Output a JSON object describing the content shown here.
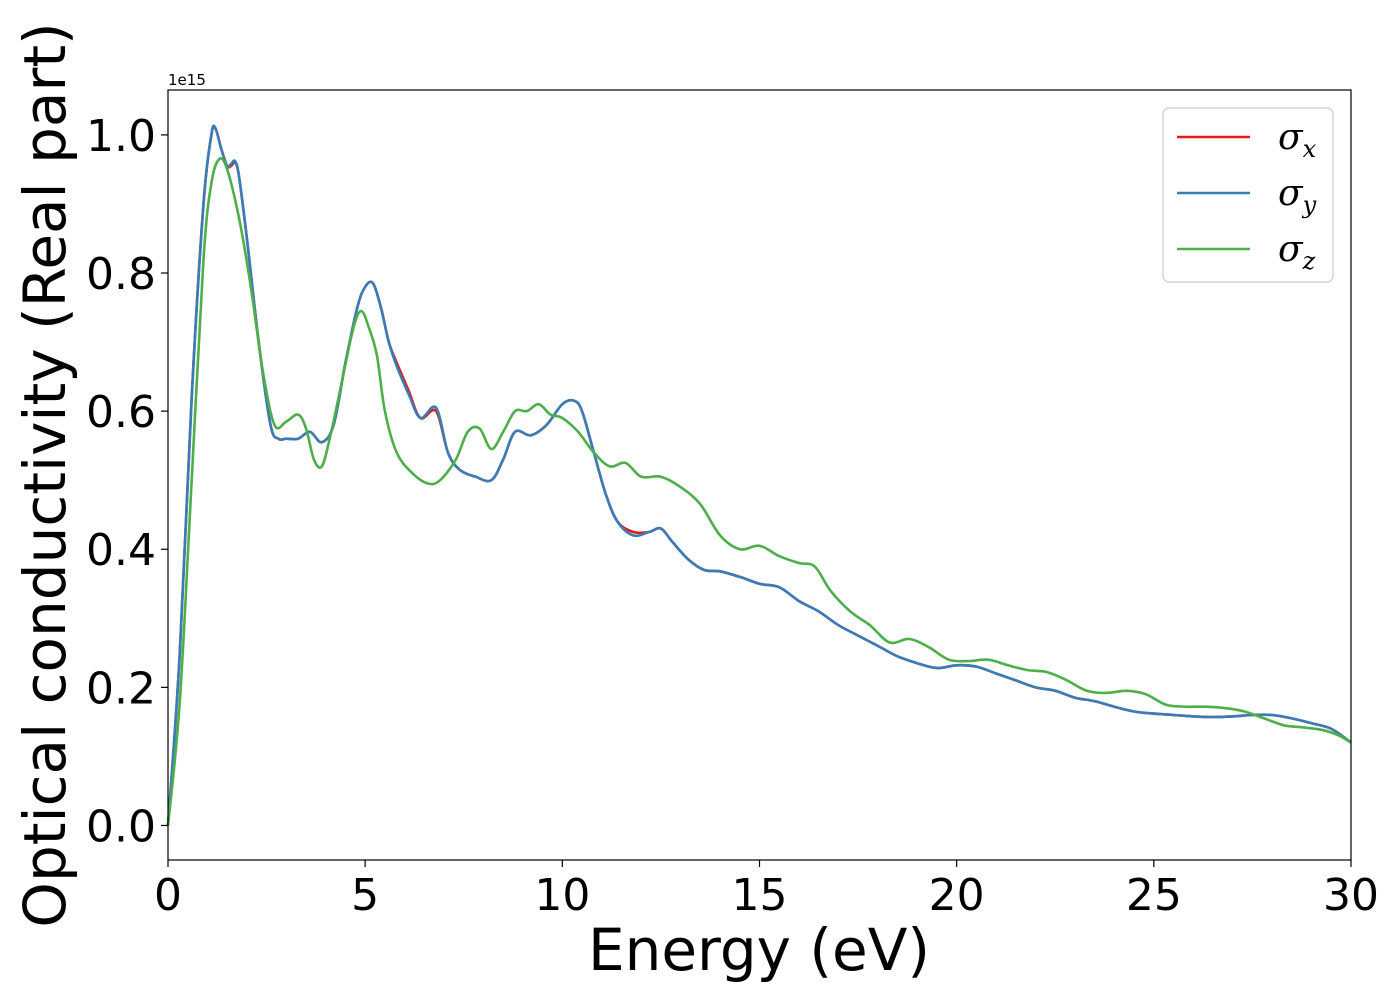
{
  "chart_data": {
    "type": "line",
    "xlabel": "Energy (eV)",
    "ylabel": "Optical conductivity (Real part)",
    "y_offset_text": "1e15",
    "xlim": [
      0,
      30
    ],
    "ylim": [
      -0.05,
      1.065
    ],
    "xticks": [
      0,
      5,
      10,
      15,
      20,
      25,
      30
    ],
    "yticks": [
      0.0,
      0.2,
      0.4,
      0.6,
      0.8,
      1.0
    ],
    "xtick_labels": [
      "0",
      "5",
      "10",
      "15",
      "20",
      "25",
      "30"
    ],
    "ytick_labels": [
      "0.0",
      "0.2",
      "0.4",
      "0.6",
      "0.8",
      "1.0"
    ],
    "grid": false,
    "legend_position": "top-right",
    "series": [
      {
        "name": "σx",
        "symbol": "σ",
        "subscript": "x",
        "color": "#e41a1c",
        "x": [
          0,
          0.3,
          0.6,
          0.9,
          1.1,
          1.2,
          1.35,
          1.5,
          1.6,
          1.7,
          1.8,
          2.0,
          2.3,
          2.6,
          2.8,
          3.0,
          3.3,
          3.6,
          3.9,
          4.2,
          4.5,
          4.8,
          5.0,
          5.2,
          5.4,
          5.6,
          5.8,
          6.1,
          6.4,
          6.8,
          7.1,
          7.4,
          7.8,
          8.2,
          8.5,
          8.8,
          9.2,
          9.6,
          10.0,
          10.3,
          10.5,
          10.8,
          11.1,
          11.4,
          11.8,
          12.2,
          12.5,
          12.8,
          13.2,
          13.6,
          14.0,
          14.5,
          15.0,
          15.5,
          16.0,
          16.5,
          17.0,
          17.5,
          18.0,
          18.5,
          19.0,
          19.5,
          20.0,
          20.5,
          21.0,
          21.5,
          22.0,
          22.5,
          23.0,
          23.5,
          24.0,
          24.5,
          25.0,
          25.5,
          26.0,
          26.5,
          27.0,
          27.5,
          28.0,
          28.5,
          29.0,
          29.5,
          30.0
        ],
        "y": [
          0.0,
          0.25,
          0.62,
          0.9,
          1.0,
          1.01,
          0.98,
          0.955,
          0.955,
          0.96,
          0.94,
          0.85,
          0.7,
          0.58,
          0.56,
          0.56,
          0.56,
          0.57,
          0.555,
          0.58,
          0.67,
          0.75,
          0.78,
          0.785,
          0.75,
          0.7,
          0.67,
          0.63,
          0.59,
          0.6,
          0.54,
          0.515,
          0.505,
          0.5,
          0.53,
          0.57,
          0.565,
          0.58,
          0.61,
          0.615,
          0.6,
          0.54,
          0.48,
          0.44,
          0.425,
          0.425,
          0.43,
          0.41,
          0.385,
          0.37,
          0.368,
          0.36,
          0.35,
          0.345,
          0.325,
          0.31,
          0.29,
          0.275,
          0.26,
          0.245,
          0.235,
          0.228,
          0.232,
          0.23,
          0.22,
          0.21,
          0.2,
          0.195,
          0.185,
          0.18,
          0.172,
          0.165,
          0.162,
          0.16,
          0.158,
          0.157,
          0.158,
          0.16,
          0.16,
          0.155,
          0.148,
          0.14,
          0.12
        ]
      },
      {
        "name": "σy",
        "symbol": "σ",
        "subscript": "y",
        "color": "#377eb8",
        "x": [
          0,
          0.3,
          0.6,
          0.9,
          1.1,
          1.2,
          1.35,
          1.5,
          1.6,
          1.7,
          1.8,
          2.0,
          2.3,
          2.6,
          2.8,
          3.0,
          3.3,
          3.6,
          3.9,
          4.2,
          4.5,
          4.8,
          5.0,
          5.2,
          5.4,
          5.6,
          5.8,
          6.1,
          6.4,
          6.8,
          7.1,
          7.4,
          7.8,
          8.2,
          8.5,
          8.8,
          9.2,
          9.6,
          10.0,
          10.3,
          10.5,
          10.8,
          11.1,
          11.4,
          11.8,
          12.2,
          12.5,
          12.8,
          13.2,
          13.6,
          14.0,
          14.5,
          15.0,
          15.5,
          16.0,
          16.5,
          17.0,
          17.5,
          18.0,
          18.5,
          19.0,
          19.5,
          20.0,
          20.5,
          21.0,
          21.5,
          22.0,
          22.5,
          23.0,
          23.5,
          24.0,
          24.5,
          25.0,
          25.5,
          26.0,
          26.5,
          27.0,
          27.5,
          28.0,
          28.5,
          29.0,
          29.5,
          30.0
        ],
        "y": [
          0.0,
          0.25,
          0.62,
          0.9,
          1.0,
          1.01,
          0.98,
          0.955,
          0.958,
          0.962,
          0.94,
          0.85,
          0.7,
          0.58,
          0.56,
          0.56,
          0.56,
          0.57,
          0.555,
          0.58,
          0.67,
          0.75,
          0.78,
          0.785,
          0.75,
          0.7,
          0.665,
          0.625,
          0.59,
          0.605,
          0.54,
          0.515,
          0.505,
          0.5,
          0.53,
          0.57,
          0.565,
          0.58,
          0.61,
          0.615,
          0.6,
          0.54,
          0.48,
          0.44,
          0.42,
          0.425,
          0.43,
          0.41,
          0.385,
          0.37,
          0.368,
          0.36,
          0.35,
          0.345,
          0.325,
          0.31,
          0.29,
          0.275,
          0.26,
          0.245,
          0.235,
          0.228,
          0.232,
          0.23,
          0.22,
          0.21,
          0.2,
          0.195,
          0.185,
          0.18,
          0.172,
          0.165,
          0.162,
          0.16,
          0.158,
          0.157,
          0.158,
          0.16,
          0.16,
          0.155,
          0.148,
          0.14,
          0.12
        ]
      },
      {
        "name": "σz",
        "symbol": "σ",
        "subscript": "z",
        "color": "#4daf4a",
        "x": [
          0,
          0.3,
          0.6,
          0.9,
          1.1,
          1.3,
          1.5,
          1.8,
          2.1,
          2.4,
          2.7,
          3.0,
          3.3,
          3.5,
          3.7,
          3.9,
          4.1,
          4.4,
          4.7,
          4.9,
          5.1,
          5.3,
          5.5,
          5.8,
          6.2,
          6.6,
          6.9,
          7.3,
          7.6,
          7.9,
          8.2,
          8.5,
          8.8,
          9.1,
          9.4,
          9.7,
          10.0,
          10.4,
          10.8,
          11.2,
          11.6,
          12.0,
          12.5,
          13.0,
          13.5,
          14.0,
          14.5,
          15.0,
          15.5,
          16.0,
          16.4,
          16.8,
          17.3,
          17.8,
          18.3,
          18.8,
          19.3,
          19.8,
          20.3,
          20.8,
          21.3,
          21.8,
          22.3,
          22.8,
          23.3,
          23.8,
          24.3,
          24.8,
          25.3,
          25.8,
          26.3,
          26.8,
          27.3,
          27.8,
          28.3,
          28.8,
          29.3,
          29.7,
          30.0
        ],
        "y": [
          0.0,
          0.18,
          0.5,
          0.82,
          0.93,
          0.965,
          0.95,
          0.88,
          0.78,
          0.66,
          0.58,
          0.585,
          0.595,
          0.575,
          0.53,
          0.52,
          0.56,
          0.64,
          0.72,
          0.745,
          0.72,
          0.68,
          0.6,
          0.54,
          0.51,
          0.495,
          0.5,
          0.53,
          0.57,
          0.575,
          0.545,
          0.57,
          0.6,
          0.6,
          0.61,
          0.595,
          0.59,
          0.57,
          0.54,
          0.52,
          0.525,
          0.505,
          0.505,
          0.49,
          0.465,
          0.42,
          0.4,
          0.405,
          0.39,
          0.38,
          0.375,
          0.34,
          0.31,
          0.29,
          0.265,
          0.27,
          0.258,
          0.24,
          0.238,
          0.24,
          0.232,
          0.225,
          0.222,
          0.21,
          0.195,
          0.192,
          0.195,
          0.19,
          0.175,
          0.172,
          0.172,
          0.17,
          0.165,
          0.155,
          0.145,
          0.142,
          0.138,
          0.13,
          0.12
        ]
      }
    ]
  }
}
